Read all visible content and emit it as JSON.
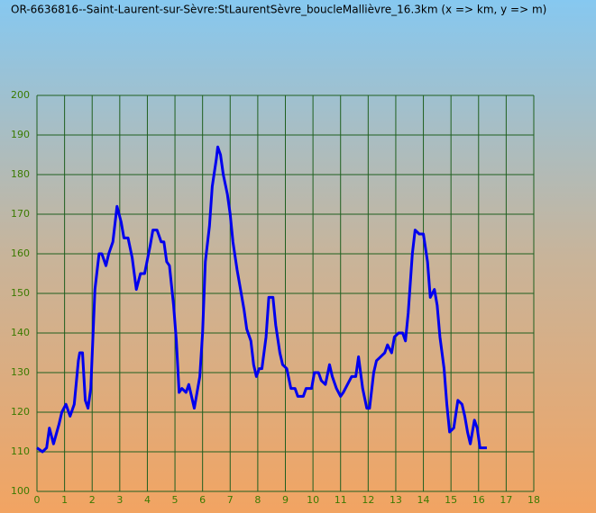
{
  "chart_data": {
    "type": "line",
    "title": "OR-6636816--Saint-Laurent-sur-Sèvre:StLaurentSèvre_boucleMallièvre_16.3km  (x  =>  km,  y  =>  m)",
    "x": [
      0,
      0.2,
      0.35,
      0.45,
      0.6,
      0.8,
      0.9,
      1.05,
      1.2,
      1.35,
      1.5,
      1.55,
      1.65,
      1.75,
      1.85,
      1.95,
      2.1,
      2.25,
      2.35,
      2.5,
      2.6,
      2.75,
      2.9,
      3.05,
      3.15,
      3.3,
      3.45,
      3.6,
      3.75,
      3.9,
      4.1,
      4.2,
      4.35,
      4.5,
      4.6,
      4.7,
      4.8,
      4.95,
      5.05,
      5.15,
      5.25,
      5.4,
      5.5,
      5.6,
      5.7,
      5.9,
      6.0,
      6.1,
      6.25,
      6.35,
      6.5,
      6.55,
      6.65,
      6.75,
      6.9,
      7.0,
      7.1,
      7.25,
      7.4,
      7.5,
      7.6,
      7.75,
      7.85,
      7.95,
      8.05,
      8.15,
      8.3,
      8.4,
      8.55,
      8.65,
      8.8,
      8.9,
      9.05,
      9.2,
      9.35,
      9.45,
      9.65,
      9.75,
      9.95,
      10.05,
      10.2,
      10.3,
      10.45,
      10.6,
      10.7,
      10.85,
      11.0,
      11.1,
      11.25,
      11.4,
      11.55,
      11.65,
      11.8,
      11.95,
      12.05,
      12.2,
      12.3,
      12.45,
      12.6,
      12.7,
      12.85,
      12.95,
      13.1,
      13.25,
      13.35,
      13.45,
      13.6,
      13.7,
      13.85,
      14.0,
      14.15,
      14.25,
      14.4,
      14.5,
      14.6,
      14.75,
      14.85,
      14.95,
      15.1,
      15.25,
      15.4,
      15.5,
      15.6,
      15.7,
      15.85,
      15.95,
      16.05,
      16.3
    ],
    "series": [
      {
        "color": "#0000ee",
        "values": [
          111,
          110,
          111,
          116,
          112,
          117,
          120,
          122,
          119,
          122,
          133,
          135,
          135,
          123,
          121,
          126,
          151,
          160,
          160,
          157,
          160,
          163,
          172,
          168,
          164,
          164,
          159,
          151,
          155,
          155,
          162,
          166,
          166,
          163,
          163,
          158,
          157,
          147,
          138,
          125,
          126,
          125,
          127,
          124,
          121,
          129,
          140,
          158,
          167,
          177,
          184,
          187,
          185,
          180,
          175,
          170,
          163,
          156,
          150,
          146,
          141,
          138,
          132,
          129,
          131,
          131,
          139,
          149,
          149,
          142,
          135,
          132,
          131,
          126,
          126,
          124,
          124,
          126,
          126,
          130,
          130,
          128,
          127,
          132,
          129,
          126,
          124,
          125,
          127,
          129,
          129,
          134,
          126,
          121,
          121,
          130,
          133,
          134,
          135,
          137,
          135,
          139,
          140,
          140,
          138,
          145,
          160,
          166,
          165,
          165,
          158,
          149,
          151,
          147,
          139,
          131,
          122,
          115,
          116,
          123,
          122,
          119,
          115,
          112,
          118,
          116,
          111,
          111
        ]
      }
    ],
    "xlim": [
      0,
      18
    ],
    "xticks": [
      0,
      1,
      2,
      3,
      4,
      5,
      6,
      7,
      8,
      9,
      10,
      11,
      12,
      13,
      14,
      15,
      16,
      17,
      18
    ],
    "ylim": [
      100,
      200
    ],
    "yticks": [
      100,
      110,
      120,
      130,
      140,
      150,
      160,
      170,
      180,
      190,
      200
    ],
    "grid": true
  }
}
